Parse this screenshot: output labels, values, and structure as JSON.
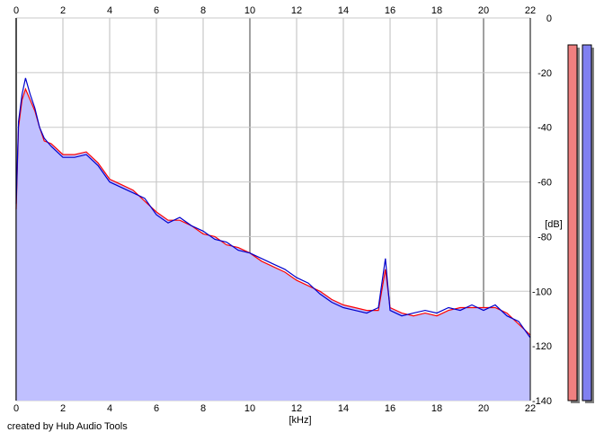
{
  "chart_data": {
    "type": "area",
    "xlabel": "[kHz]",
    "ylabel": "[dB]",
    "xlim": [
      0,
      22
    ],
    "ylim": [
      -140,
      0
    ],
    "x_ticks": [
      0,
      2,
      4,
      6,
      8,
      10,
      12,
      14,
      16,
      18,
      20,
      22
    ],
    "x_tick_labels": [
      "0",
      "2",
      "4",
      "6",
      "8",
      "10",
      "12",
      "14",
      "16",
      "18",
      "20",
      "22"
    ],
    "y_ticks": [
      0,
      -20,
      -40,
      -60,
      -80,
      -100,
      -120,
      -140
    ],
    "y_tick_labels": [
      "0",
      "-20",
      "-40",
      "-60",
      "-80",
      "-100",
      "-120",
      "-140"
    ],
    "grid": true,
    "series": [
      {
        "color": "#ff0000",
        "fill": "#c0c0ff",
        "x": [
          0,
          0.1,
          0.25,
          0.4,
          0.6,
          0.8,
          1.0,
          1.2,
          1.5,
          2.0,
          2.5,
          3.0,
          3.5,
          4.0,
          4.5,
          5.0,
          5.5,
          6.0,
          6.5,
          7.0,
          7.5,
          8.0,
          8.5,
          9.0,
          9.5,
          10.0,
          10.5,
          11.0,
          11.5,
          12.0,
          12.5,
          13.0,
          13.5,
          14.0,
          14.5,
          15.0,
          15.5,
          15.8,
          16.0,
          16.5,
          17.0,
          17.5,
          18.0,
          18.5,
          19.0,
          19.5,
          20.0,
          20.5,
          21.0,
          21.5,
          22.0
        ],
        "y": [
          -70,
          -40,
          -30,
          -26,
          -30,
          -34,
          -40,
          -45,
          -46,
          -50,
          -50,
          -49,
          -53,
          -59,
          -61,
          -63,
          -67,
          -71,
          -74,
          -74,
          -76,
          -79,
          -80,
          -83,
          -84,
          -86,
          -89,
          -91,
          -93,
          -96,
          -98,
          -100,
          -103,
          -105,
          -106,
          -107,
          -107,
          -92,
          -106,
          -108,
          -109,
          -108,
          -109,
          -107,
          -106,
          -106,
          -106,
          -106,
          -108,
          -112,
          -116
        ]
      },
      {
        "color": "#0000cc",
        "fill": "#c0c0ff",
        "x": [
          0,
          0.1,
          0.25,
          0.4,
          0.6,
          0.8,
          1.0,
          1.2,
          1.5,
          2.0,
          2.5,
          3.0,
          3.5,
          4.0,
          4.5,
          5.0,
          5.5,
          6.0,
          6.5,
          7.0,
          7.5,
          8.0,
          8.5,
          9.0,
          9.5,
          10.0,
          10.5,
          11.0,
          11.5,
          12.0,
          12.5,
          13.0,
          13.5,
          14.0,
          14.5,
          15.0,
          15.5,
          15.8,
          16.0,
          16.5,
          17.0,
          17.5,
          18.0,
          18.5,
          19.0,
          19.5,
          20.0,
          20.5,
          21.0,
          21.5,
          22.0
        ],
        "y": [
          -68,
          -38,
          -28,
          -22,
          -28,
          -33,
          -40,
          -44,
          -47,
          -51,
          -51,
          -50,
          -54,
          -60,
          -62,
          -64,
          -66,
          -72,
          -75,
          -73,
          -76,
          -78,
          -81,
          -82,
          -85,
          -86,
          -88,
          -90,
          -92,
          -95,
          -97,
          -101,
          -104,
          -106,
          -107,
          -108,
          -106,
          -88,
          -107,
          -109,
          -108,
          -107,
          -108,
          -106,
          -107,
          -105,
          -107,
          -105,
          -109,
          -111,
          -117
        ]
      }
    ],
    "level_meters": [
      {
        "color": "#f08080",
        "level_db": 0
      },
      {
        "color": "#8080f0",
        "level_db": 0
      }
    ]
  },
  "footer": {
    "credit": "created by Hub Audio Tools"
  }
}
